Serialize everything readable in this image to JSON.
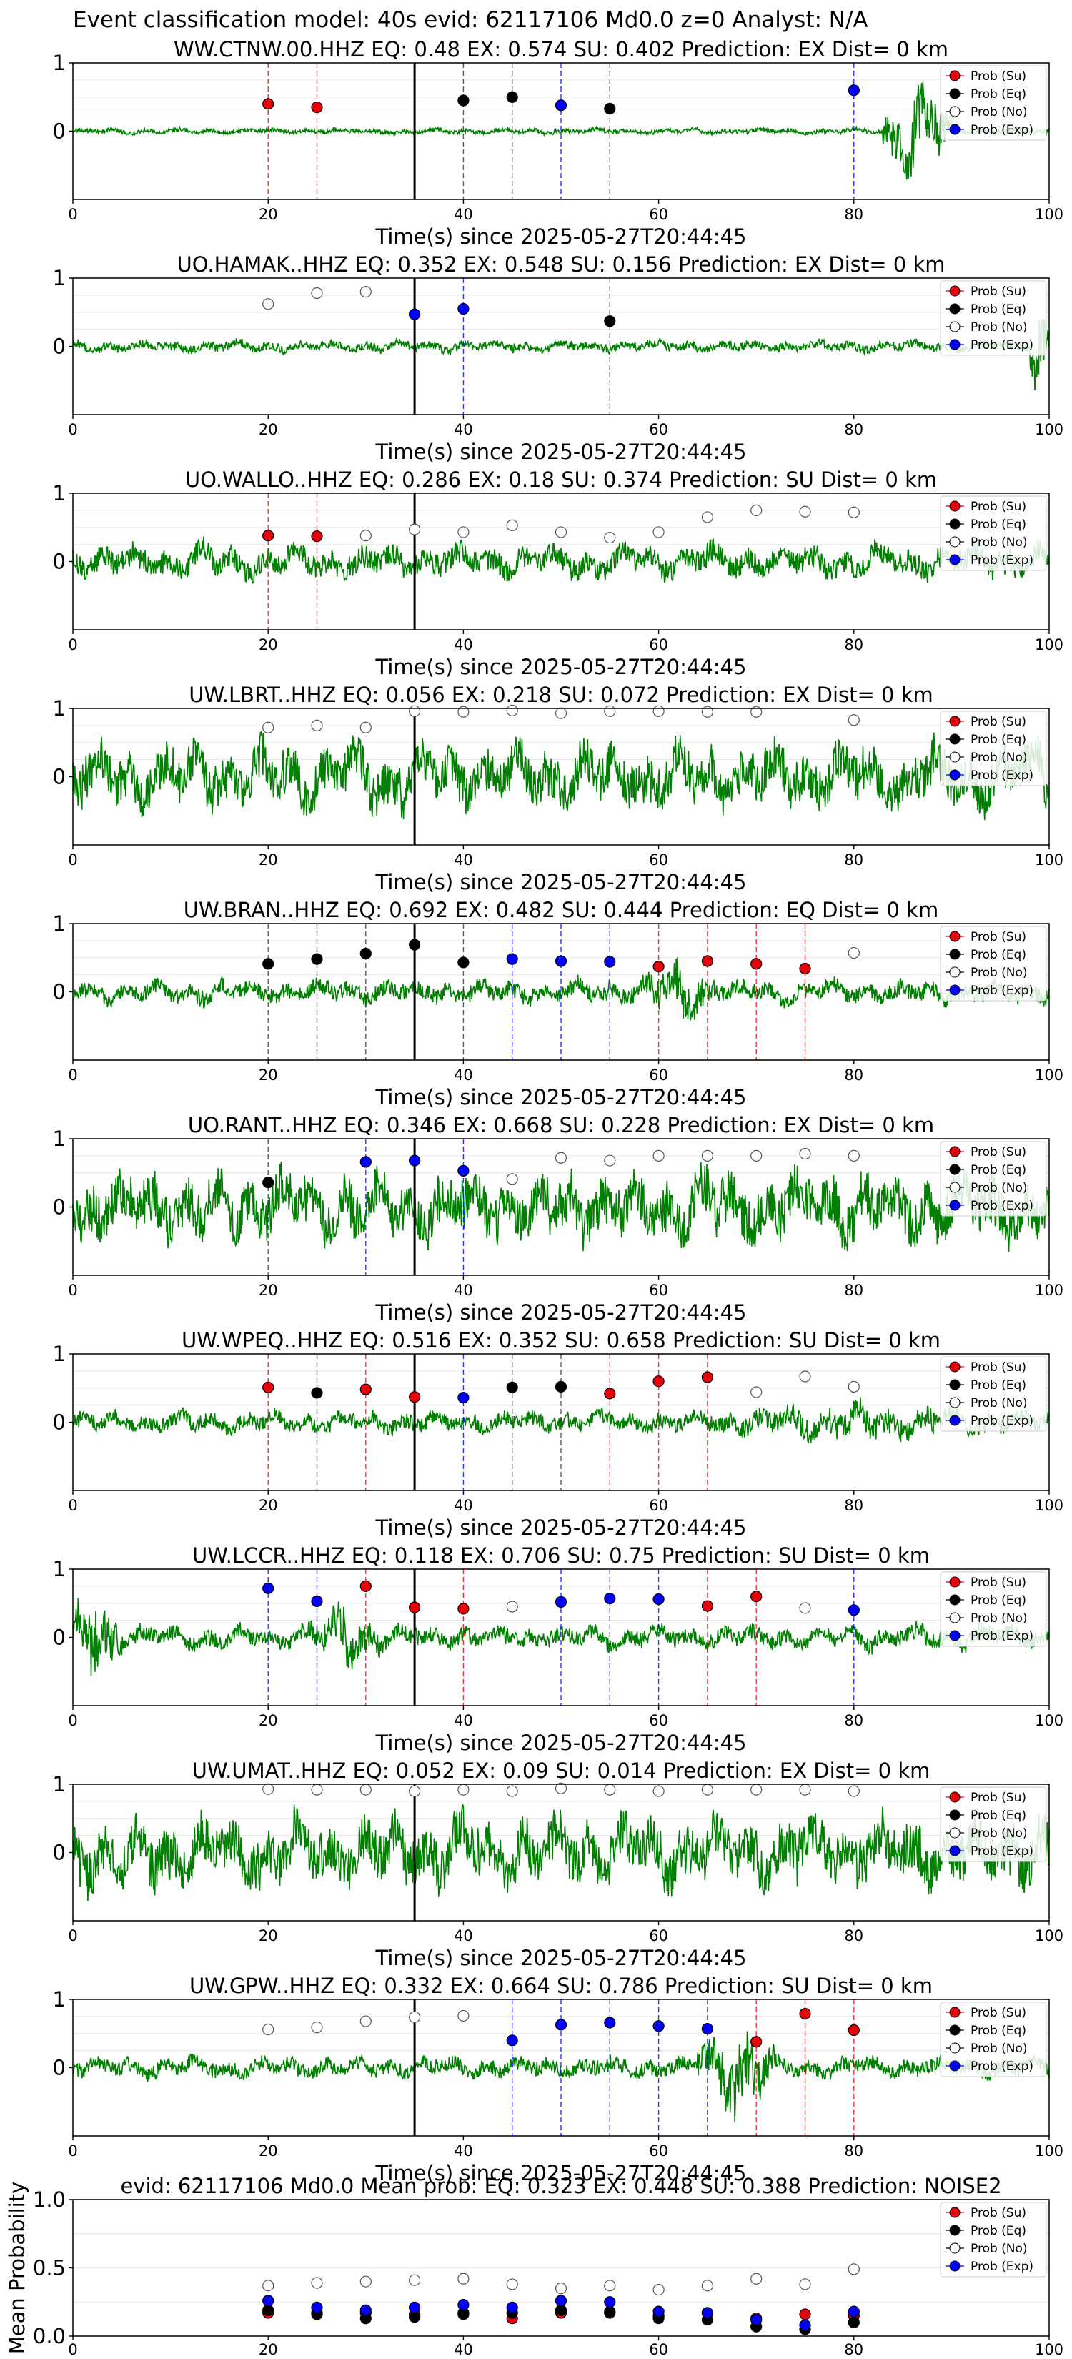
{
  "figure": {
    "suptitle": "Event classification model: 40s evid: 62117106 Md0.0 z=0 Analyst: N/A",
    "colors": {
      "su": "#e8000b",
      "eq": "#000000",
      "no": "#ffffff",
      "exp": "#0000ff",
      "waveform": "#008000",
      "origin_line": "#000000"
    },
    "legend": {
      "placement": "top-right",
      "entries": [
        "Prob (Su)",
        "Prob (Eq)",
        "Prob (No)",
        "Prob (Exp)"
      ]
    },
    "xlabel": "Time(s) since 2025-05-27T20:44:45",
    "x_ticks": [
      "0",
      "20",
      "40",
      "60",
      "80",
      "100"
    ],
    "y_ticks": [
      "0",
      "1"
    ]
  },
  "chart_data": [
    {
      "type": "scatter",
      "station": "WW.CTNW.00.HHZ",
      "title": "WW.CTNW.00.HHZ   EQ: 0.48  EX: 0.574  SU: 0.402   Prediction: EX    Dist= 0 km",
      "xlabel": "Time(s) since 2025-05-27T20:44:45",
      "xlim": [
        0,
        100
      ],
      "ylim": [
        -1,
        1
      ],
      "origin_time": 35,
      "waveform": {
        "amplitude": 0.05,
        "events": [
          {
            "t0": 10,
            "t1": 20,
            "amp": 0.05
          },
          {
            "t0": 83,
            "t1": 90,
            "amp": 0.9
          }
        ]
      },
      "points": [
        {
          "x": 20,
          "y": 0.4,
          "class": "su"
        },
        {
          "x": 25,
          "y": 0.35,
          "class": "su"
        },
        {
          "x": 40,
          "y": 0.45,
          "class": "eq"
        },
        {
          "x": 45,
          "y": 0.5,
          "class": "eq"
        },
        {
          "x": 50,
          "y": 0.38,
          "class": "exp"
        },
        {
          "x": 55,
          "y": 0.33,
          "class": "eq"
        },
        {
          "x": 80,
          "y": 0.6,
          "class": "exp"
        }
      ]
    },
    {
      "type": "scatter",
      "station": "UO.HAMAK..HHZ",
      "title": "UO.HAMAK..HHZ   EQ: 0.352  EX: 0.548  SU: 0.156   Prediction: EX    Dist= 0 km",
      "xlabel": "Time(s) since 2025-05-27T20:44:45",
      "xlim": [
        0,
        100
      ],
      "ylim": [
        -1,
        1
      ],
      "origin_time": 35,
      "waveform": {
        "amplitude": 0.1,
        "events": [
          {
            "t0": 98,
            "t1": 100,
            "amp": 0.9
          }
        ]
      },
      "points": [
        {
          "x": 20,
          "y": 0.62,
          "class": "no"
        },
        {
          "x": 25,
          "y": 0.78,
          "class": "no"
        },
        {
          "x": 30,
          "y": 0.8,
          "class": "no"
        },
        {
          "x": 35,
          "y": 0.47,
          "class": "exp"
        },
        {
          "x": 40,
          "y": 0.55,
          "class": "exp"
        },
        {
          "x": 55,
          "y": 0.37,
          "class": "eq"
        }
      ]
    },
    {
      "type": "scatter",
      "station": "UO.WALLO..HHZ",
      "title": "UO.WALLO..HHZ   EQ: 0.286  EX: 0.18  SU: 0.374   Prediction: SU    Dist= 0 km",
      "xlabel": "Time(s) since 2025-05-27T20:44:45",
      "xlim": [
        0,
        100
      ],
      "ylim": [
        -1,
        1
      ],
      "origin_time": 35,
      "waveform": {
        "amplitude": 0.28,
        "events": []
      },
      "points": [
        {
          "x": 20,
          "y": 0.38,
          "class": "su"
        },
        {
          "x": 25,
          "y": 0.37,
          "class": "su"
        },
        {
          "x": 30,
          "y": 0.38,
          "class": "no"
        },
        {
          "x": 35,
          "y": 0.47,
          "class": "no"
        },
        {
          "x": 40,
          "y": 0.43,
          "class": "no"
        },
        {
          "x": 45,
          "y": 0.53,
          "class": "no"
        },
        {
          "x": 50,
          "y": 0.43,
          "class": "no"
        },
        {
          "x": 55,
          "y": 0.35,
          "class": "no"
        },
        {
          "x": 60,
          "y": 0.43,
          "class": "no"
        },
        {
          "x": 65,
          "y": 0.65,
          "class": "no"
        },
        {
          "x": 70,
          "y": 0.75,
          "class": "no"
        },
        {
          "x": 75,
          "y": 0.73,
          "class": "no"
        },
        {
          "x": 80,
          "y": 0.72,
          "class": "no"
        }
      ]
    },
    {
      "type": "scatter",
      "station": "UW.LBRT..HHZ",
      "title": "UW.LBRT..HHZ   EQ: 0.056  EX: 0.218  SU: 0.072   Prediction: EX    Dist= 0 km",
      "xlabel": "Time(s) since 2025-05-27T20:44:45",
      "xlim": [
        0,
        100
      ],
      "ylim": [
        -1,
        1
      ],
      "origin_time": 35,
      "waveform": {
        "amplitude": 0.55,
        "events": []
      },
      "points": [
        {
          "x": 20,
          "y": 0.72,
          "class": "no"
        },
        {
          "x": 25,
          "y": 0.75,
          "class": "no"
        },
        {
          "x": 30,
          "y": 0.72,
          "class": "no"
        },
        {
          "x": 35,
          "y": 0.96,
          "class": "no"
        },
        {
          "x": 40,
          "y": 0.95,
          "class": "no"
        },
        {
          "x": 45,
          "y": 0.97,
          "class": "no"
        },
        {
          "x": 50,
          "y": 0.93,
          "class": "no"
        },
        {
          "x": 55,
          "y": 0.96,
          "class": "no"
        },
        {
          "x": 60,
          "y": 0.96,
          "class": "no"
        },
        {
          "x": 65,
          "y": 0.95,
          "class": "no"
        },
        {
          "x": 70,
          "y": 0.95,
          "class": "no"
        },
        {
          "x": 80,
          "y": 0.83,
          "class": "no"
        }
      ]
    },
    {
      "type": "scatter",
      "station": "UW.BRAN..HHZ",
      "title": "UW.BRAN..HHZ   EQ: 0.692  EX: 0.482  SU: 0.444   Prediction: EQ    Dist= 0 km",
      "xlabel": "Time(s) since 2025-05-27T20:44:45",
      "xlim": [
        0,
        100
      ],
      "ylim": [
        -1,
        1
      ],
      "origin_time": 35,
      "waveform": {
        "amplitude": 0.2,
        "events": [
          {
            "t0": 58,
            "t1": 66,
            "amp": 0.6
          }
        ]
      },
      "points": [
        {
          "x": 20,
          "y": 0.41,
          "class": "eq"
        },
        {
          "x": 25,
          "y": 0.48,
          "class": "eq"
        },
        {
          "x": 30,
          "y": 0.56,
          "class": "eq"
        },
        {
          "x": 35,
          "y": 0.69,
          "class": "eq"
        },
        {
          "x": 40,
          "y": 0.43,
          "class": "eq"
        },
        {
          "x": 45,
          "y": 0.48,
          "class": "exp"
        },
        {
          "x": 50,
          "y": 0.45,
          "class": "exp"
        },
        {
          "x": 55,
          "y": 0.44,
          "class": "exp"
        },
        {
          "x": 60,
          "y": 0.37,
          "class": "su"
        },
        {
          "x": 65,
          "y": 0.45,
          "class": "su"
        },
        {
          "x": 70,
          "y": 0.41,
          "class": "su"
        },
        {
          "x": 75,
          "y": 0.34,
          "class": "su"
        },
        {
          "x": 80,
          "y": 0.57,
          "class": "no"
        }
      ]
    },
    {
      "type": "scatter",
      "station": "UO.RANT..HHZ",
      "title": "UO.RANT..HHZ   EQ: 0.346  EX: 0.668  SU: 0.228   Prediction: EX    Dist= 0 km",
      "xlabel": "Time(s) since 2025-05-27T20:44:45",
      "xlim": [
        0,
        100
      ],
      "ylim": [
        -1,
        1
      ],
      "origin_time": 35,
      "waveform": {
        "amplitude": 0.6,
        "events": []
      },
      "points": [
        {
          "x": 20,
          "y": 0.36,
          "class": "eq"
        },
        {
          "x": 30,
          "y": 0.66,
          "class": "exp"
        },
        {
          "x": 35,
          "y": 0.68,
          "class": "exp"
        },
        {
          "x": 40,
          "y": 0.53,
          "class": "exp"
        },
        {
          "x": 45,
          "y": 0.41,
          "class": "no"
        },
        {
          "x": 50,
          "y": 0.72,
          "class": "no"
        },
        {
          "x": 55,
          "y": 0.68,
          "class": "no"
        },
        {
          "x": 60,
          "y": 0.75,
          "class": "no"
        },
        {
          "x": 65,
          "y": 0.75,
          "class": "no"
        },
        {
          "x": 70,
          "y": 0.75,
          "class": "no"
        },
        {
          "x": 75,
          "y": 0.78,
          "class": "no"
        },
        {
          "x": 80,
          "y": 0.75,
          "class": "no"
        }
      ]
    },
    {
      "type": "scatter",
      "station": "UW.WPEQ..HHZ",
      "title": "UW.WPEQ..HHZ   EQ: 0.516  EX: 0.352  SU: 0.658   Prediction: SU    Dist= 0 km",
      "xlabel": "Time(s) since 2025-05-27T20:44:45",
      "xlim": [
        0,
        100
      ],
      "ylim": [
        -1,
        1
      ],
      "origin_time": 35,
      "waveform": {
        "amplitude": 0.18,
        "events": [
          {
            "t0": 60,
            "t1": 100,
            "amp": 0.35
          }
        ]
      },
      "points": [
        {
          "x": 20,
          "y": 0.51,
          "class": "su"
        },
        {
          "x": 25,
          "y": 0.43,
          "class": "eq"
        },
        {
          "x": 30,
          "y": 0.48,
          "class": "su"
        },
        {
          "x": 35,
          "y": 0.37,
          "class": "su"
        },
        {
          "x": 40,
          "y": 0.36,
          "class": "exp"
        },
        {
          "x": 45,
          "y": 0.51,
          "class": "eq"
        },
        {
          "x": 50,
          "y": 0.52,
          "class": "eq"
        },
        {
          "x": 55,
          "y": 0.42,
          "class": "su"
        },
        {
          "x": 60,
          "y": 0.6,
          "class": "su"
        },
        {
          "x": 65,
          "y": 0.66,
          "class": "su"
        },
        {
          "x": 70,
          "y": 0.44,
          "class": "no"
        },
        {
          "x": 75,
          "y": 0.67,
          "class": "no"
        },
        {
          "x": 80,
          "y": 0.52,
          "class": "no"
        }
      ]
    },
    {
      "type": "scatter",
      "station": "UW.LCCR..HHZ",
      "title": "UW.LCCR..HHZ   EQ: 0.118  EX: 0.706  SU: 0.75   Prediction: SU    Dist= 0 km",
      "xlabel": "Time(s) since 2025-05-27T20:44:45",
      "xlim": [
        0,
        100
      ],
      "ylim": [
        -1,
        1
      ],
      "origin_time": 35,
      "waveform": {
        "amplitude": 0.2,
        "events": [
          {
            "t0": 0,
            "t1": 5,
            "amp": 0.9
          },
          {
            "t0": 24,
            "t1": 32,
            "amp": 0.6
          }
        ]
      },
      "points": [
        {
          "x": 20,
          "y": 0.72,
          "class": "exp"
        },
        {
          "x": 25,
          "y": 0.53,
          "class": "exp"
        },
        {
          "x": 30,
          "y": 0.75,
          "class": "su"
        },
        {
          "x": 35,
          "y": 0.44,
          "class": "su"
        },
        {
          "x": 40,
          "y": 0.42,
          "class": "su"
        },
        {
          "x": 45,
          "y": 0.45,
          "class": "no"
        },
        {
          "x": 50,
          "y": 0.52,
          "class": "exp"
        },
        {
          "x": 55,
          "y": 0.57,
          "class": "exp"
        },
        {
          "x": 60,
          "y": 0.56,
          "class": "exp"
        },
        {
          "x": 65,
          "y": 0.46,
          "class": "su"
        },
        {
          "x": 70,
          "y": 0.6,
          "class": "su"
        },
        {
          "x": 75,
          "y": 0.43,
          "class": "no"
        },
        {
          "x": 80,
          "y": 0.4,
          "class": "exp"
        }
      ]
    },
    {
      "type": "scatter",
      "station": "UW.UMAT..HHZ",
      "title": "UW.UMAT..HHZ   EQ: 0.052  EX: 0.09  SU: 0.014   Prediction: EX    Dist= 0 km",
      "xlabel": "Time(s) since 2025-05-27T20:44:45",
      "xlim": [
        0,
        100
      ],
      "ylim": [
        -1,
        1
      ],
      "origin_time": 35,
      "waveform": {
        "amplitude": 0.6,
        "events": []
      },
      "points": [
        {
          "x": 20,
          "y": 0.93,
          "class": "no"
        },
        {
          "x": 25,
          "y": 0.92,
          "class": "no"
        },
        {
          "x": 30,
          "y": 0.92,
          "class": "no"
        },
        {
          "x": 35,
          "y": 0.9,
          "class": "no"
        },
        {
          "x": 40,
          "y": 0.92,
          "class": "no"
        },
        {
          "x": 45,
          "y": 0.9,
          "class": "no"
        },
        {
          "x": 50,
          "y": 0.94,
          "class": "no"
        },
        {
          "x": 55,
          "y": 0.92,
          "class": "no"
        },
        {
          "x": 60,
          "y": 0.9,
          "class": "no"
        },
        {
          "x": 65,
          "y": 0.92,
          "class": "no"
        },
        {
          "x": 70,
          "y": 0.92,
          "class": "no"
        },
        {
          "x": 75,
          "y": 0.92,
          "class": "no"
        },
        {
          "x": 80,
          "y": 0.9,
          "class": "no"
        }
      ]
    },
    {
      "type": "scatter",
      "station": "UW.GPW..HHZ",
      "title": "UW.GPW..HHZ   EQ: 0.332  EX: 0.664  SU: 0.786   Prediction: SU    Dist= 0 km",
      "xlabel": "Time(s) since 2025-05-27T20:44:45",
      "xlim": [
        0,
        100
      ],
      "ylim": [
        -1,
        1
      ],
      "origin_time": 35,
      "waveform": {
        "amplitude": 0.18,
        "events": [
          {
            "t0": 64,
            "t1": 72,
            "amp": 0.85
          }
        ]
      },
      "points": [
        {
          "x": 20,
          "y": 0.56,
          "class": "no"
        },
        {
          "x": 25,
          "y": 0.59,
          "class": "no"
        },
        {
          "x": 30,
          "y": 0.68,
          "class": "no"
        },
        {
          "x": 35,
          "y": 0.74,
          "class": "no"
        },
        {
          "x": 40,
          "y": 0.76,
          "class": "no"
        },
        {
          "x": 45,
          "y": 0.4,
          "class": "exp"
        },
        {
          "x": 50,
          "y": 0.63,
          "class": "exp"
        },
        {
          "x": 55,
          "y": 0.66,
          "class": "exp"
        },
        {
          "x": 60,
          "y": 0.61,
          "class": "exp"
        },
        {
          "x": 65,
          "y": 0.57,
          "class": "exp"
        },
        {
          "x": 70,
          "y": 0.38,
          "class": "su"
        },
        {
          "x": 75,
          "y": 0.79,
          "class": "su"
        },
        {
          "x": 80,
          "y": 0.55,
          "class": "su"
        }
      ]
    },
    {
      "type": "scatter",
      "station": "mean",
      "title": "evid: 62117106  Md0.0   Mean prob:   EQ: 0.323  EX: 0.448  SU: 0.388   Prediction: NOISE2",
      "xlabel": "",
      "ylabel": "Mean Probability",
      "xlim": [
        0,
        100
      ],
      "ylim": [
        0,
        1
      ],
      "y_ticks": [
        "0.0",
        "0.5",
        "1.0"
      ],
      "x": [
        20,
        25,
        30,
        35,
        40,
        45,
        50,
        55,
        60,
        65,
        70,
        75,
        80
      ],
      "series": [
        {
          "name": "Prob (Su)",
          "class": "su",
          "values": [
            0.17,
            0.17,
            0.17,
            0.16,
            0.17,
            0.13,
            0.17,
            0.17,
            0.15,
            0.17,
            0.13,
            0.16,
            0.15
          ]
        },
        {
          "name": "Prob (Eq)",
          "class": "eq",
          "values": [
            0.19,
            0.16,
            0.13,
            0.14,
            0.16,
            0.17,
            0.19,
            0.18,
            0.13,
            0.12,
            0.07,
            0.05,
            0.1
          ]
        },
        {
          "name": "Prob (No)",
          "class": "no",
          "values": [
            0.37,
            0.39,
            0.4,
            0.41,
            0.42,
            0.38,
            0.35,
            0.37,
            0.34,
            0.37,
            0.42,
            0.38,
            0.49
          ]
        },
        {
          "name": "Prob (Exp)",
          "class": "exp",
          "values": [
            0.26,
            0.21,
            0.19,
            0.21,
            0.23,
            0.21,
            0.26,
            0.25,
            0.18,
            0.17,
            0.12,
            0.08,
            0.18
          ]
        }
      ]
    }
  ]
}
